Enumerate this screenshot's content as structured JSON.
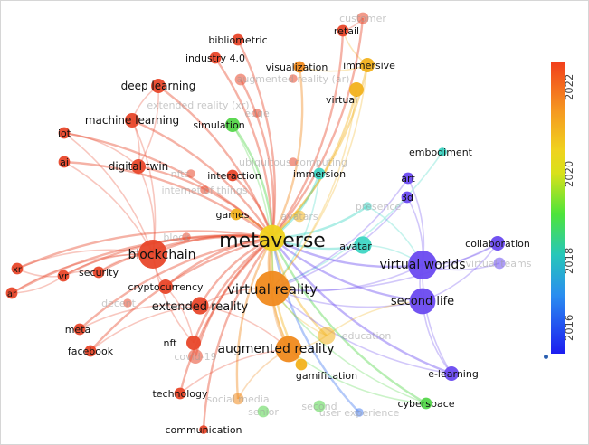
{
  "legend": {
    "ticks": [
      "2022",
      "2020",
      "2018",
      "2016"
    ],
    "colors": [
      "#f2401c",
      "#f0d21e",
      "#4ee43a",
      "#1d1df0"
    ]
  },
  "colors": {
    "red": "#e8472a",
    "orange": "#f08a1e",
    "amber": "#f2b21e",
    "yellow": "#f0d21e",
    "green": "#54d64a",
    "teal": "#3fd6c4",
    "blue": "#4a7ff0",
    "purple": "#6a4af0"
  },
  "network": {
    "nodes": [
      {
        "id": "metaverse",
        "label": "metaverse",
        "color": "yellow",
        "size": 9,
        "font": 22,
        "faded": false
      },
      {
        "id": "virtual-reality",
        "label": "virtual reality",
        "color": "orange",
        "size": 12,
        "font": 15,
        "faded": false
      },
      {
        "id": "augmented-reality",
        "label": "augmented reality",
        "color": "orange",
        "size": 9,
        "font": 14,
        "faded": false
      },
      {
        "id": "blockchain",
        "label": "blockchain",
        "color": "red",
        "size": 10,
        "font": 14,
        "faded": false
      },
      {
        "id": "virtual-worlds",
        "label": "virtual worlds",
        "color": "purple",
        "size": 10,
        "font": 14,
        "faded": false
      },
      {
        "id": "second-life",
        "label": "second life",
        "color": "purple",
        "size": 9,
        "font": 13,
        "faded": false
      },
      {
        "id": "extended-reality",
        "label": "extended reality",
        "color": "red",
        "size": 6,
        "font": 13,
        "faded": false
      },
      {
        "id": "avatar",
        "label": "avatar",
        "color": "teal",
        "size": 6,
        "font": 11,
        "faded": false
      },
      {
        "id": "cryptocurrency",
        "label": "cryptocurrency",
        "color": "red",
        "size": 5,
        "font": 11,
        "faded": false
      },
      {
        "id": "security",
        "label": "security",
        "color": "red",
        "size": 4,
        "font": 11,
        "faded": false
      },
      {
        "id": "digital-twin",
        "label": "digital twin",
        "color": "red",
        "size": 5,
        "font": 12,
        "faded": false
      },
      {
        "id": "machine-learning",
        "label": "machine learning",
        "color": "red",
        "size": 5,
        "font": 12,
        "faded": false
      },
      {
        "id": "deep-learning",
        "label": "deep learning",
        "color": "red",
        "size": 5,
        "font": 12,
        "faded": false
      },
      {
        "id": "industry-40",
        "label": "industry 4.0",
        "color": "red",
        "size": 4,
        "font": 11,
        "faded": false
      },
      {
        "id": "bibliometric",
        "label": "bibliometric",
        "color": "red",
        "size": 4,
        "font": 11,
        "faded": false
      },
      {
        "id": "retail",
        "label": "retail",
        "color": "red",
        "size": 4,
        "font": 11,
        "faded": false
      },
      {
        "id": "customer",
        "label": "customer",
        "color": "red",
        "size": 4,
        "font": 11,
        "faded": true
      },
      {
        "id": "visualization",
        "label": "visualization",
        "color": "orange",
        "size": 4,
        "font": 11,
        "faded": false
      },
      {
        "id": "immersive",
        "label": "immersive",
        "color": "amber",
        "size": 5,
        "font": 11,
        "faded": false
      },
      {
        "id": "virtual",
        "label": "virtual",
        "color": "amber",
        "size": 5,
        "font": 11,
        "faded": false
      },
      {
        "id": "extended-reality-xr",
        "label": "extended reality (xr)",
        "color": "red",
        "size": 4,
        "font": 11,
        "faded": true
      },
      {
        "id": "simulation",
        "label": "simulation",
        "color": "green",
        "size": 5,
        "font": 11,
        "faded": false
      },
      {
        "id": "interaction",
        "label": "interaction",
        "color": "red",
        "size": 4,
        "font": 11,
        "faded": false
      },
      {
        "id": "immersion",
        "label": "immersion",
        "color": "teal",
        "size": 4,
        "font": 11,
        "faded": false
      },
      {
        "id": "embodiment",
        "label": "embodiment",
        "color": "teal",
        "size": 3,
        "font": 11,
        "faded": false
      },
      {
        "id": "art",
        "label": "art",
        "color": "purple",
        "size": 4,
        "font": 11,
        "faded": false
      },
      {
        "id": "3d",
        "label": "3d",
        "color": "purple",
        "size": 4,
        "font": 11,
        "faded": false
      },
      {
        "id": "presence",
        "label": "presence",
        "color": "teal",
        "size": 3,
        "font": 11,
        "faded": true
      },
      {
        "id": "avatars",
        "label": "avatars",
        "color": "amber",
        "size": 4,
        "font": 11,
        "faded": true
      },
      {
        "id": "games",
        "label": "games",
        "color": "amber",
        "size": 4,
        "font": 11,
        "faded": false
      },
      {
        "id": "collaboration",
        "label": "collaboration",
        "color": "purple",
        "size": 5,
        "font": 11,
        "faded": false
      },
      {
        "id": "virtual-teams",
        "label": "virtual teams",
        "color": "purple",
        "size": 4,
        "font": 11,
        "faded": true
      },
      {
        "id": "education",
        "label": "education",
        "color": "amber",
        "size": 6,
        "font": 11,
        "faded": true
      },
      {
        "id": "gamification",
        "label": "gamification",
        "color": "amber",
        "size": 4,
        "font": 11,
        "faded": false
      },
      {
        "id": "e-learning",
        "label": "e-learning",
        "color": "purple",
        "size": 5,
        "font": 11,
        "faded": false
      },
      {
        "id": "cyberspace",
        "label": "cyberspace",
        "color": "green",
        "size": 4,
        "font": 11,
        "faded": false
      },
      {
        "id": "user-experience",
        "label": "user experience",
        "color": "blue",
        "size": 3,
        "font": 11,
        "faded": true
      },
      {
        "id": "social-media",
        "label": "social media",
        "color": "orange",
        "size": 4,
        "font": 11,
        "faded": true
      },
      {
        "id": "communication",
        "label": "communication",
        "color": "red",
        "size": 3,
        "font": 11,
        "faded": false
      },
      {
        "id": "technology",
        "label": "technology",
        "color": "red",
        "size": 4,
        "font": 11,
        "faded": false
      },
      {
        "id": "covid-19",
        "label": "covid-19",
        "color": "red",
        "size": 5,
        "font": 11,
        "faded": true
      },
      {
        "id": "nft",
        "label": "nft",
        "color": "red",
        "size": 5,
        "font": 11,
        "faded": false
      },
      {
        "id": "facebook",
        "label": "facebook",
        "color": "red",
        "size": 4,
        "font": 11,
        "faded": false
      },
      {
        "id": "meta",
        "label": "meta",
        "color": "red",
        "size": 4,
        "font": 11,
        "faded": false
      },
      {
        "id": "xr",
        "label": "xr",
        "color": "red",
        "size": 4,
        "font": 10,
        "faded": false
      },
      {
        "id": "ar",
        "label": "ar",
        "color": "red",
        "size": 4,
        "font": 10,
        "faded": false
      },
      {
        "id": "vr",
        "label": "vr",
        "color": "red",
        "size": 4,
        "font": 11,
        "faded": false
      },
      {
        "id": "iot",
        "label": "iot",
        "color": "red",
        "size": 4,
        "font": 11,
        "faded": false
      },
      {
        "id": "ai",
        "label": "ai",
        "color": "red",
        "size": 4,
        "font": 11,
        "faded": false
      },
      {
        "id": "nfts",
        "label": "nfts",
        "color": "red",
        "size": 3,
        "font": 11,
        "faded": true
      },
      {
        "id": "decentral",
        "label": "decent",
        "color": "red",
        "size": 3,
        "font": 11,
        "faded": true
      },
      {
        "id": "block",
        "label": "block",
        "color": "red",
        "size": 3,
        "font": 11,
        "faded": true
      },
      {
        "id": "augmented-reality-ar",
        "label": "augmented reality (ar)",
        "color": "red",
        "size": 3,
        "font": 11,
        "faded": true
      },
      {
        "id": "ubiquitous-computing",
        "label": "ubiquitous computing",
        "color": "red",
        "size": 3,
        "font": 11,
        "faded": true
      },
      {
        "id": "internet-of-things",
        "label": "internet of things",
        "color": "red",
        "size": 3,
        "font": 11,
        "faded": true
      },
      {
        "id": "edge",
        "label": "edge",
        "color": "red",
        "size": 3,
        "font": 11,
        "faded": true
      },
      {
        "id": "senior",
        "label": "senior",
        "color": "green",
        "size": 4,
        "font": 11,
        "faded": true
      },
      {
        "id": "second",
        "label": "second",
        "color": "green",
        "size": 4,
        "font": 11,
        "faded": true
      }
    ],
    "edges": [
      [
        "metaverse",
        "virtual-reality"
      ],
      [
        "metaverse",
        "augmented-reality"
      ],
      [
        "metaverse",
        "blockchain"
      ],
      [
        "metaverse",
        "virtual-worlds"
      ],
      [
        "metaverse",
        "second-life"
      ],
      [
        "metaverse",
        "extended-reality"
      ],
      [
        "metaverse",
        "avatar"
      ],
      [
        "metaverse",
        "cryptocurrency"
      ],
      [
        "metaverse",
        "security"
      ],
      [
        "metaverse",
        "digital-twin"
      ],
      [
        "metaverse",
        "machine-learning"
      ],
      [
        "metaverse",
        "deep-learning"
      ],
      [
        "metaverse",
        "industry-40"
      ],
      [
        "metaverse",
        "bibliometric"
      ],
      [
        "metaverse",
        "retail"
      ],
      [
        "metaverse",
        "customer"
      ],
      [
        "metaverse",
        "visualization"
      ],
      [
        "metaverse",
        "immersive"
      ],
      [
        "metaverse",
        "virtual"
      ],
      [
        "metaverse",
        "extended-reality-xr"
      ],
      [
        "metaverse",
        "simulation"
      ],
      [
        "metaverse",
        "interaction"
      ],
      [
        "metaverse",
        "immersion"
      ],
      [
        "metaverse",
        "games"
      ],
      [
        "metaverse",
        "education"
      ],
      [
        "metaverse",
        "gamification"
      ],
      [
        "metaverse",
        "nft"
      ],
      [
        "metaverse",
        "facebook"
      ],
      [
        "metaverse",
        "meta"
      ],
      [
        "metaverse",
        "xr"
      ],
      [
        "metaverse",
        "ar"
      ],
      [
        "metaverse",
        "vr"
      ],
      [
        "metaverse",
        "iot"
      ],
      [
        "metaverse",
        "ai"
      ],
      [
        "metaverse",
        "technology"
      ],
      [
        "metaverse",
        "communication"
      ],
      [
        "metaverse",
        "covid-19"
      ],
      [
        "metaverse",
        "social-media"
      ],
      [
        "metaverse",
        "cyberspace"
      ],
      [
        "metaverse",
        "e-learning"
      ],
      [
        "metaverse",
        "user-experience"
      ],
      [
        "metaverse",
        "presence"
      ],
      [
        "virtual-reality",
        "virtual-worlds"
      ],
      [
        "virtual-reality",
        "augmented-reality"
      ],
      [
        "virtual-reality",
        "second-life"
      ],
      [
        "virtual-reality",
        "extended-reality"
      ],
      [
        "virtual-reality",
        "immersive"
      ],
      [
        "virtual-reality",
        "simulation"
      ],
      [
        "virtual-reality",
        "virtual"
      ],
      [
        "virtual-reality",
        "education"
      ],
      [
        "virtual-reality",
        "e-learning"
      ],
      [
        "virtual-reality",
        "embodiment"
      ],
      [
        "virtual-reality",
        "art"
      ],
      [
        "virtual-reality",
        "3d"
      ],
      [
        "virtual-reality",
        "collaboration"
      ],
      [
        "virtual-reality",
        "immersion"
      ],
      [
        "virtual-reality",
        "gamification"
      ],
      [
        "virtual-reality",
        "cyberspace"
      ],
      [
        "virtual-worlds",
        "second-life"
      ],
      [
        "virtual-worlds",
        "collaboration"
      ],
      [
        "virtual-worlds",
        "virtual-teams"
      ],
      [
        "virtual-worlds",
        "e-learning"
      ],
      [
        "virtual-worlds",
        "avatar"
      ],
      [
        "virtual-worlds",
        "3d"
      ],
      [
        "virtual-worlds",
        "art"
      ],
      [
        "virtual-worlds",
        "presence"
      ],
      [
        "second-life",
        "e-learning"
      ],
      [
        "second-life",
        "education"
      ],
      [
        "second-life",
        "collaboration"
      ],
      [
        "blockchain",
        "cryptocurrency"
      ],
      [
        "blockchain",
        "nft"
      ],
      [
        "blockchain",
        "security"
      ],
      [
        "blockchain",
        "vr"
      ],
      [
        "blockchain",
        "xr"
      ],
      [
        "blockchain",
        "ar"
      ],
      [
        "blockchain",
        "digital-twin"
      ],
      [
        "blockchain",
        "iot"
      ],
      [
        "blockchain",
        "ai"
      ],
      [
        "blockchain",
        "machine-learning"
      ],
      [
        "augmented-reality",
        "extended-reality"
      ],
      [
        "augmented-reality",
        "education"
      ],
      [
        "augmented-reality",
        "gamification"
      ],
      [
        "augmented-reality",
        "social-media"
      ],
      [
        "augmented-reality",
        "technology"
      ],
      [
        "augmented-reality",
        "cyberspace"
      ],
      [
        "digital-twin",
        "machine-learning"
      ],
      [
        "digital-twin",
        "deep-learning"
      ],
      [
        "digital-twin",
        "iot"
      ],
      [
        "deep-learning",
        "machine-learning"
      ],
      [
        "retail",
        "customer"
      ],
      [
        "retail",
        "immersive"
      ],
      [
        "visualization",
        "immersive"
      ],
      [
        "extended-reality",
        "facebook"
      ],
      [
        "extended-reality",
        "meta"
      ],
      [
        "security",
        "vr"
      ],
      [
        "ar",
        "vr"
      ],
      [
        "xr",
        "vr"
      ],
      [
        "nft",
        "cryptocurrency"
      ]
    ]
  }
}
